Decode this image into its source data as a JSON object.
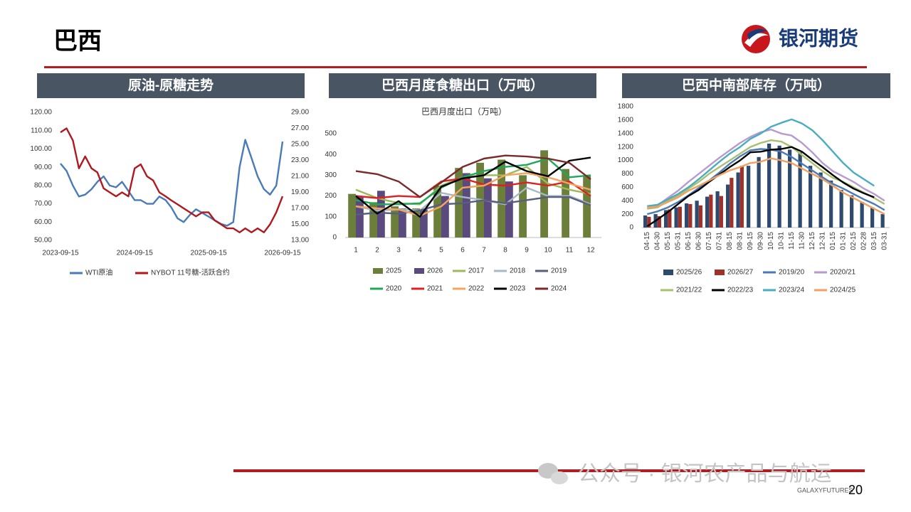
{
  "header": {
    "title": "巴西",
    "logo": "银河期货"
  },
  "chart_data": [
    {
      "type": "line",
      "panel_title": "原油-原糖走势",
      "x": [
        "2023-09-15",
        "2023-10-15",
        "2023-11-15",
        "2023-12-15",
        "2024-01-15",
        "2024-02-15",
        "2024-03-15",
        "2024-04-15",
        "2024-05-15",
        "2024-06-15",
        "2024-07-15",
        "2024-08-15",
        "2024-09-15",
        "2024-10-15",
        "2024-11-15",
        "2024-12-15",
        "2025-01-15",
        "2025-02-15",
        "2025-03-15",
        "2025-04-15",
        "2025-05-15",
        "2025-06-15",
        "2025-07-15",
        "2025-08-15",
        "2025-09-15",
        "2025-10-15",
        "2025-11-15",
        "2025-12-15",
        "2026-01-15",
        "2026-02-15",
        "2026-03-15",
        "2026-04-15",
        "2026-05-15",
        "2026-06-15",
        "2026-07-15",
        "2026-08-15",
        "2026-09-15"
      ],
      "xlim": [
        "2023-09-15",
        "2026-09-15"
      ],
      "xticks": [
        "2023-09-15",
        "2024-09-15",
        "2025-09-15",
        "2026-09-15"
      ],
      "ylim": [
        50,
        120
      ],
      "yticks": [
        {
          "value": 50,
          "label": "50.00"
        },
        {
          "value": 60,
          "label": "60.00"
        },
        {
          "value": 70,
          "label": "70.00"
        },
        {
          "value": 80,
          "label": "80.00"
        },
        {
          "value": 90,
          "label": "90.00"
        },
        {
          "value": 100,
          "label": "100.00"
        },
        {
          "value": 110,
          "label": "110.00"
        },
        {
          "value": 120,
          "label": "120.00"
        }
      ],
      "y2lim": [
        13,
        29
      ],
      "y2ticks": [
        {
          "value": 13,
          "label": "13.00"
        },
        {
          "value": 15,
          "label": "15.00"
        },
        {
          "value": 17,
          "label": "17.00"
        },
        {
          "value": 19,
          "label": "19.00"
        },
        {
          "value": 21,
          "label": "21.00"
        },
        {
          "value": 23,
          "label": "23.00"
        },
        {
          "value": 25,
          "label": "25.00"
        },
        {
          "value": 27,
          "label": "27.00"
        },
        {
          "value": 29,
          "label": "29.00"
        }
      ],
      "series": [
        {
          "name": "WTI原油",
          "type": "line",
          "color": "#4a7ab8",
          "values": [
            92,
            88,
            80,
            74,
            75,
            78,
            82,
            85,
            80,
            79,
            82,
            77,
            72,
            72,
            70,
            70,
            74,
            72,
            68,
            62,
            60,
            64,
            67,
            65,
            63,
            61,
            59,
            58,
            60,
            90,
            105,
            95,
            85,
            78,
            75,
            80,
            104
          ]
        },
        {
          "name": "NYBOT 11号糖-活跃合约",
          "type": "line",
          "axis": "y2",
          "color": "#b0171f",
          "values": [
            26.5,
            27,
            25.5,
            22,
            23.5,
            22,
            21.5,
            19.5,
            19,
            18.5,
            19,
            18.5,
            22,
            22.5,
            21,
            20.5,
            19,
            18.5,
            18,
            17.5,
            17,
            16.5,
            16,
            16.5,
            16.5,
            15.5,
            15,
            14.5,
            14.5,
            14,
            14.5,
            14,
            14.5,
            14,
            15,
            16.5,
            18.5
          ]
        }
      ]
    },
    {
      "type": "bar",
      "panel_title": "巴西月度食糖出口（万吨）",
      "title": "巴西月度出口（万吨）",
      "categories": [
        "1",
        "2",
        "3",
        "4",
        "5",
        "6",
        "7",
        "8",
        "9",
        "10",
        "11",
        "12"
      ],
      "ylim": [
        0,
        500
      ],
      "yticks": [
        0,
        100,
        200,
        300,
        400,
        500
      ],
      "series": [
        {
          "name": "2025",
          "type": "bar",
          "color": "#6b7f3a",
          "values": [
            210,
            170,
            150,
            140,
            250,
            335,
            360,
            375,
            300,
            420,
            330,
            300
          ]
        },
        {
          "name": "2026",
          "type": "bar",
          "color": "#5b4a7e",
          "values": [
            195,
            225,
            140,
            135,
            200,
            310,
            285,
            270,
            null,
            null,
            null,
            null
          ]
        },
        {
          "name": "2017",
          "type": "line",
          "color": "#9bbb59",
          "values": [
            230,
            190,
            165,
            160,
            250,
            290,
            300,
            300,
            340,
            260,
            230,
            210
          ]
        },
        {
          "name": "2018",
          "type": "line",
          "color": "#a5b8c8",
          "values": [
            150,
            130,
            135,
            130,
            215,
            195,
            180,
            160,
            240,
            200,
            200,
            160
          ]
        },
        {
          "name": "2019",
          "type": "line",
          "color": "#5a5e7e",
          "values": [
            110,
            120,
            115,
            130,
            160,
            165,
            180,
            165,
            180,
            195,
            195,
            155
          ]
        },
        {
          "name": "2020",
          "type": "line",
          "color": "#1fa85a",
          "values": [
            180,
            160,
            160,
            165,
            240,
            290,
            320,
            340,
            350,
            380,
            290,
            300
          ]
        },
        {
          "name": "2021",
          "type": "line",
          "color": "#e02020",
          "values": [
            200,
            190,
            200,
            195,
            270,
            285,
            255,
            250,
            265,
            250,
            270,
            200
          ]
        },
        {
          "name": "2022",
          "type": "line",
          "color": "#f4a460",
          "values": [
            150,
            140,
            135,
            105,
            150,
            240,
            250,
            300,
            310,
            290,
            260,
            230
          ]
        },
        {
          "name": "2023",
          "type": "line",
          "color": "#000000",
          "values": [
            200,
            115,
            175,
            100,
            245,
            285,
            300,
            365,
            320,
            295,
            370,
            385
          ]
        },
        {
          "name": "2024",
          "type": "line",
          "color": "#7b2a2a",
          "values": [
            320,
            305,
            270,
            195,
            265,
            340,
            380,
            395,
            390,
            380,
            360,
            280
          ]
        }
      ]
    },
    {
      "type": "bar",
      "panel_title": "巴西中南部库存（万吨）",
      "categories": [
        "04-15",
        "04-30",
        "05-15",
        "05-31",
        "06-15",
        "06-30",
        "07-15",
        "07-31",
        "08-15",
        "08-31",
        "09-15",
        "09-30",
        "10-15",
        "10-31",
        "11-15",
        "11-30",
        "12-15",
        "12-31",
        "01-15",
        "01-31",
        "02-15",
        "02-28",
        "03-15",
        "03-31"
      ],
      "ylim": [
        0,
        1800
      ],
      "yticks": [
        0,
        200,
        400,
        600,
        800,
        1000,
        1200,
        1400,
        1600,
        1800
      ],
      "series": [
        {
          "name": "2025/26",
          "type": "bar",
          "color": "#2e4a6e",
          "values": [
            180,
            200,
            260,
            300,
            360,
            400,
            460,
            540,
            640,
            820,
            920,
            1050,
            1250,
            1220,
            1160,
            1120,
            920,
            820,
            700,
            560,
            480,
            380,
            300,
            200
          ]
        },
        {
          "name": "2026/27",
          "type": "bar",
          "color": "#a0302a",
          "values": [
            160,
            170,
            270,
            310,
            350,
            330,
            490,
            470,
            740,
            920,
            null,
            null,
            null,
            null,
            null,
            null,
            null,
            null,
            null,
            null,
            null,
            null,
            null,
            null
          ]
        },
        {
          "name": "2019/20",
          "type": "line",
          "color": "#4a7ab8",
          "values": [
            200,
            240,
            300,
            380,
            480,
            590,
            700,
            820,
            950,
            1060,
            1150,
            1170,
            1160,
            1130,
            1050,
            950,
            850,
            750,
            650,
            580,
            500,
            420,
            350,
            260
          ]
        },
        {
          "name": "2020/21",
          "type": "line",
          "color": "#b69ad0",
          "values": [
            300,
            330,
            440,
            550,
            680,
            800,
            920,
            1040,
            1150,
            1260,
            1350,
            1420,
            1460,
            1400,
            1370,
            1260,
            1120,
            960,
            840,
            760,
            680,
            580,
            500,
            400
          ]
        },
        {
          "name": "2021/22",
          "type": "line",
          "color": "#a8c070",
          "values": [
            280,
            300,
            400,
            480,
            580,
            680,
            800,
            900,
            1000,
            1100,
            1200,
            1260,
            1300,
            1280,
            1200,
            1080,
            960,
            840,
            740,
            680,
            600,
            520,
            440,
            350
          ]
        },
        {
          "name": "2022/23",
          "type": "line",
          "color": "#000000",
          "values": [
            20,
            120,
            230,
            350,
            470,
            560,
            680,
            790,
            900,
            1000,
            1120,
            1130,
            1160,
            1170,
            1200,
            1130,
            1010,
            900,
            780,
            670,
            580,
            510,
            450,
            null
          ]
        },
        {
          "name": "2023/24",
          "type": "line",
          "color": "#4aacc0",
          "values": [
            320,
            340,
            420,
            500,
            600,
            720,
            850,
            980,
            1100,
            1200,
            1320,
            1400,
            1500,
            1560,
            1610,
            1550,
            1450,
            1300,
            1130,
            960,
            820,
            720,
            620,
            null
          ]
        },
        {
          "name": "2024/25",
          "type": "line",
          "color": "#f0a060",
          "values": [
            300,
            310,
            380,
            450,
            550,
            620,
            700,
            780,
            850,
            900,
            960,
            980,
            1030,
            1000,
            960,
            880,
            800,
            720,
            620,
            520,
            440,
            360,
            280,
            200
          ]
        }
      ]
    }
  ],
  "footer": {
    "watermark": "公众号 · 银河农产品与航运",
    "brand": "GALAXYFUTURES",
    "page": "20"
  }
}
